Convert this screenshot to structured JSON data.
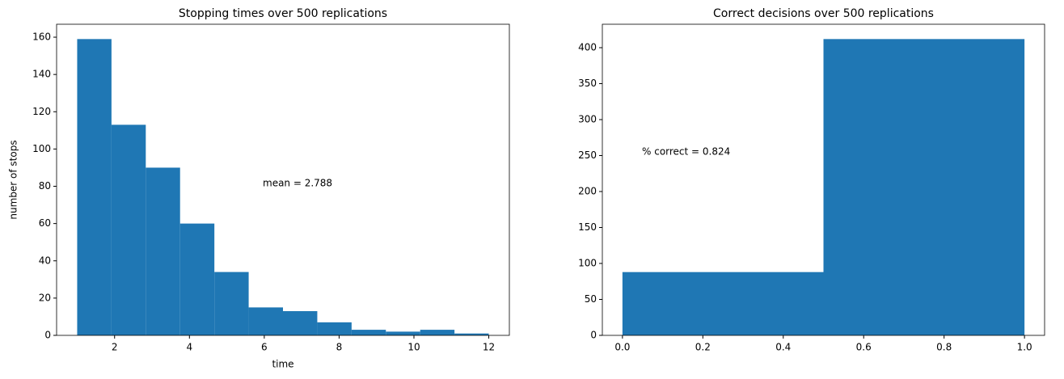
{
  "chart_data": [
    {
      "type": "histogram",
      "title": "Stopping times over 500 replications",
      "xlabel": "time",
      "ylabel": "number of stops",
      "bins": [
        1,
        1.9167,
        2.8333,
        3.75,
        4.6667,
        5.5833,
        6.5,
        7.4167,
        8.3333,
        9.25,
        10.1667,
        11.0833,
        12
      ],
      "values": [
        159,
        113,
        90,
        60,
        34,
        15,
        13,
        7,
        3,
        2,
        3,
        1
      ],
      "color": "#1f77b4",
      "xlim": [
        0.45,
        12.55
      ],
      "xticks": [
        2,
        4,
        6,
        8,
        10,
        12
      ],
      "ylim": [
        0,
        166.95
      ],
      "yticks": [
        0,
        20,
        40,
        60,
        80,
        100,
        120,
        140,
        160
      ],
      "annotation": "mean = 2.788"
    },
    {
      "type": "histogram",
      "title": "Correct decisions over 500 replications",
      "bins": [
        0,
        0.5,
        1
      ],
      "values": [
        88,
        412
      ],
      "color": "#1f77b4",
      "xlim": [
        -0.05,
        1.05
      ],
      "xticks": [
        {
          "value": 0,
          "label": "0.0"
        },
        0.2,
        0.4,
        0.6,
        0.8,
        {
          "value": 1,
          "label": "1.0"
        }
      ],
      "ylim": [
        0,
        432.6
      ],
      "yticks": [
        0,
        50,
        100,
        150,
        200,
        250,
        300,
        350,
        400
      ],
      "annotation": "% correct = 0.824"
    }
  ]
}
